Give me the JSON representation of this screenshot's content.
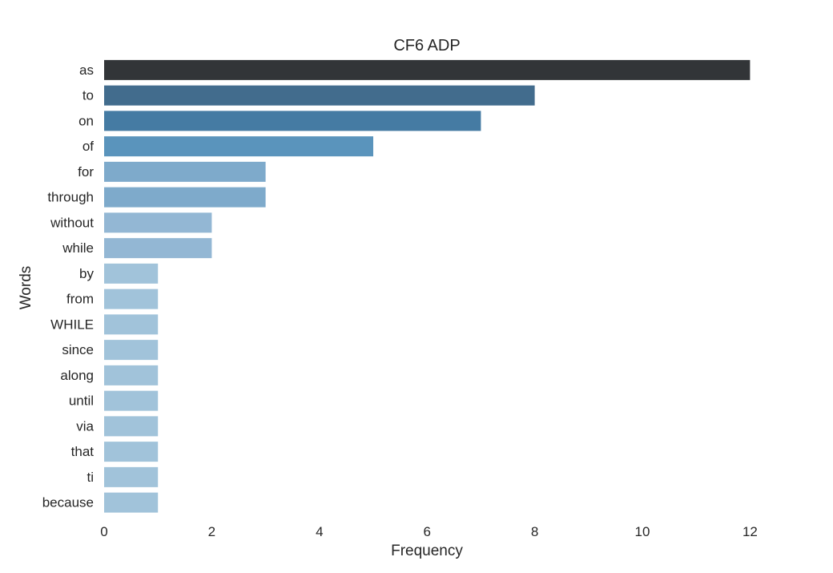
{
  "chart_data": {
    "type": "bar",
    "orientation": "horizontal",
    "title": "CF6 ADP",
    "xlabel": "Frequency",
    "ylabel": "Words",
    "categories": [
      "as",
      "to",
      "on",
      "of",
      "for",
      "through",
      "without",
      "while",
      "by",
      "from",
      "WHILE",
      "since",
      "along",
      "until",
      "via",
      "that",
      "ti",
      "because"
    ],
    "values": [
      12,
      8,
      7,
      5,
      3,
      3,
      2,
      2,
      1,
      1,
      1,
      1,
      1,
      1,
      1,
      1,
      1,
      1
    ],
    "colors": [
      "#323538",
      "#426c8d",
      "#457ba3",
      "#5a94bc",
      "#7eaacb",
      "#7eaacb",
      "#93b7d4",
      "#93b7d4",
      "#a1c3da",
      "#a1c3da",
      "#a1c3da",
      "#a1c3da",
      "#a1c3da",
      "#a1c3da",
      "#a1c3da",
      "#a1c3da",
      "#a1c3da",
      "#a1c3da"
    ],
    "xticks": [
      "0",
      "2",
      "4",
      "6",
      "8",
      "10",
      "12"
    ],
    "xlim": [
      0,
      13.6
    ],
    "grid": false
  }
}
